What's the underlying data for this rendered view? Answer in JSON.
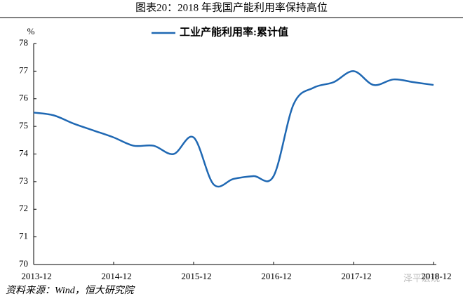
{
  "chart_data": {
    "type": "line",
    "title": "图表20：2018 年我国产能利用率保持高位",
    "y_label": "%",
    "source": "资料来源：Wind，恒大研究院",
    "watermark": "泽平宏观",
    "categories": [
      "2013-12",
      null,
      null,
      null,
      "2014-12",
      null,
      null,
      null,
      "2015-12",
      null,
      null,
      null,
      "2016-12",
      null,
      null,
      null,
      "2017-12",
      null,
      null,
      null,
      "2018-12"
    ],
    "series": [
      {
        "name": "工业产能利用率:累计值",
        "color": "#1f68b3",
        "values": [
          75.5,
          75.4,
          75.1,
          74.85,
          74.6,
          74.3,
          74.3,
          74.0,
          74.6,
          72.9,
          73.1,
          73.2,
          73.2,
          75.8,
          76.4,
          76.6,
          77.0,
          76.5,
          76.7,
          76.6,
          76.5
        ]
      }
    ],
    "ylim": [
      70,
      78
    ],
    "yticks": [
      70,
      71,
      72,
      73,
      74,
      75,
      76,
      77,
      78
    ],
    "legend": "top"
  }
}
